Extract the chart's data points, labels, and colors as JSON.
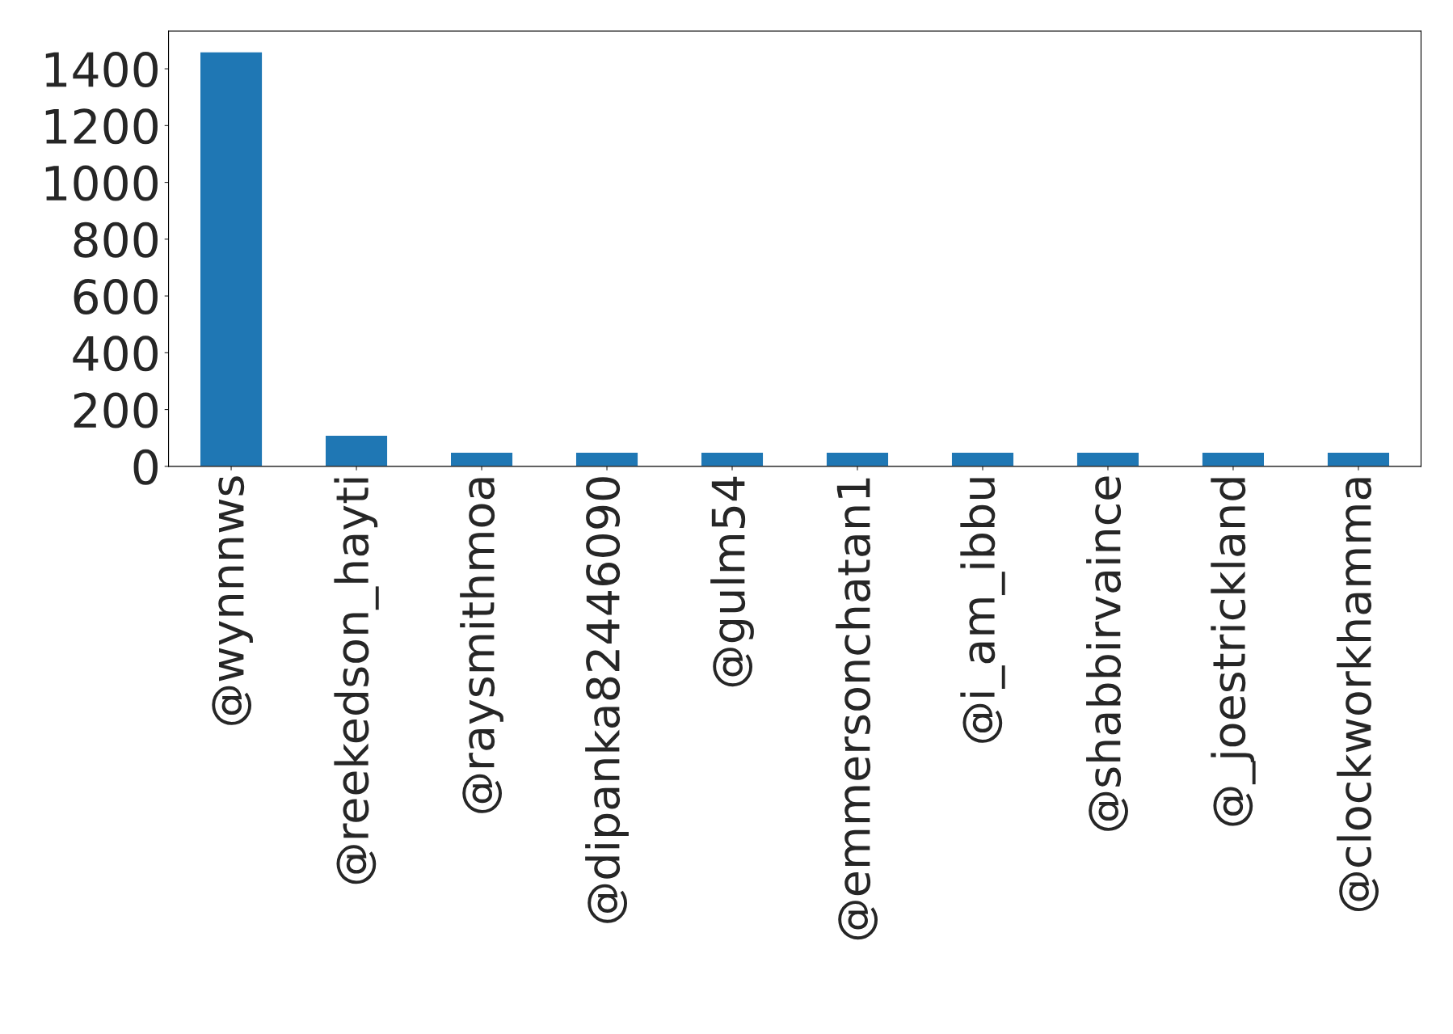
{
  "chart_data": {
    "type": "bar",
    "categories": [
      "@wynnnws",
      "@reekedson_hayti",
      "@raysmithmoa",
      "@dipanka82446090",
      "@gulm54",
      "@emmersonchatan1",
      "@i_am_ibbu",
      "@shabbirvaince",
      "@_joestrickland",
      "@clockworkhamma"
    ],
    "values": [
      1460,
      110,
      50,
      50,
      50,
      50,
      50,
      50,
      50,
      50
    ],
    "color": "#1f77b4",
    "ylim": [
      0,
      1533
    ],
    "yticks": [
      0,
      200,
      400,
      600,
      800,
      1000,
      1200,
      1400
    ],
    "grid": false
  }
}
